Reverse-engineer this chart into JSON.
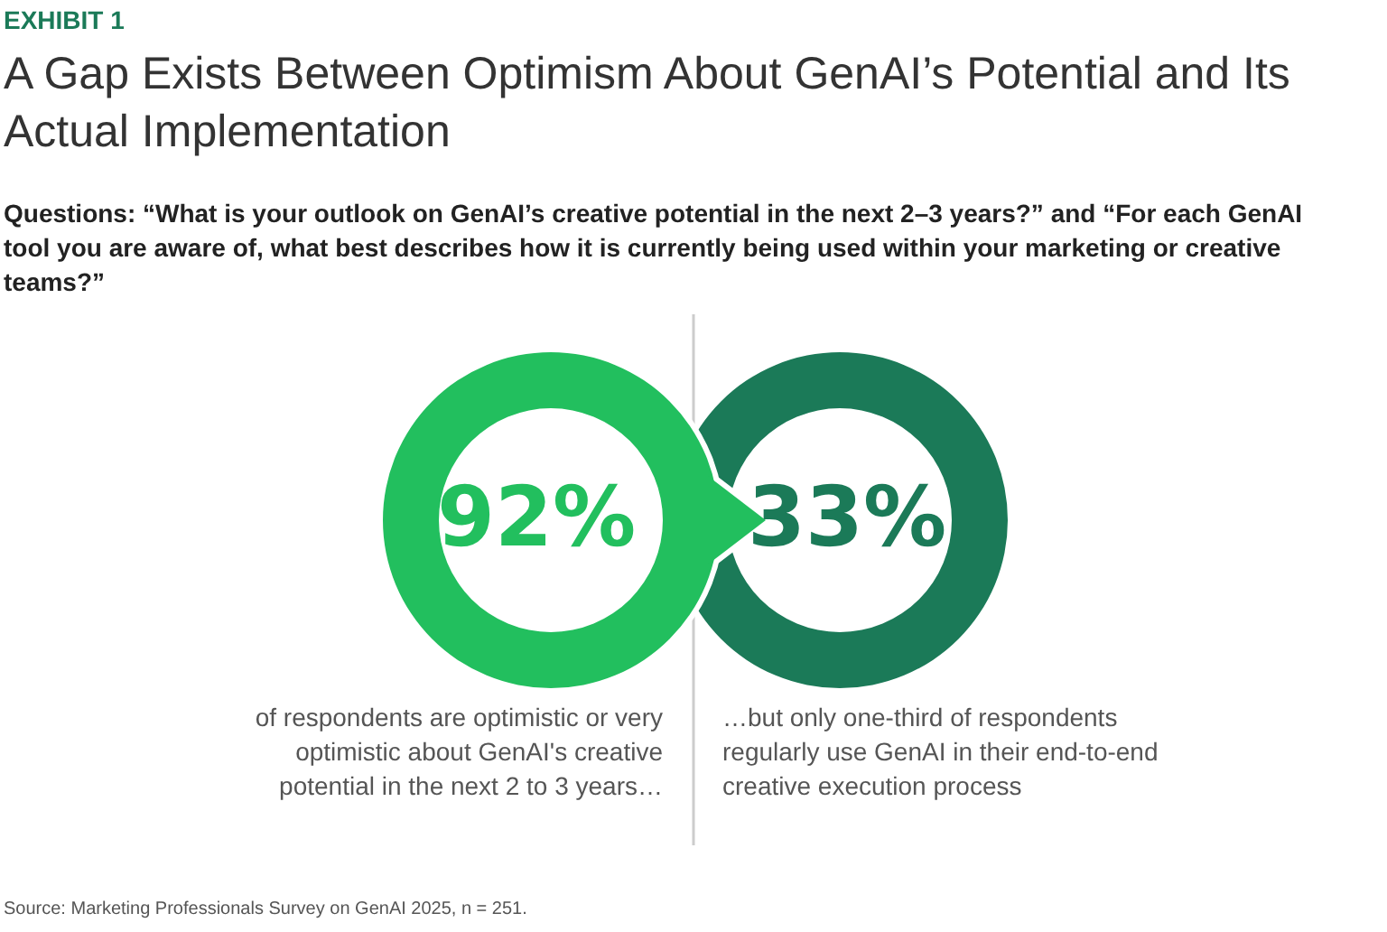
{
  "chart_data": {
    "type": "other",
    "title": "A Gap Exists Between Optimism About GenAI’s Potential and Its Actual Implementation",
    "subtitle": "Questions: “What is your outlook on GenAI’s creative potential in the next 2–3 years?” and “For each GenAI tool you are aware of, what best describes how it is currently being used within your marketing or creative teams?”",
    "categories": [
      "of respondents are optimistic or very optimistic about GenAI's creative potential in the next 2 to 3 years…",
      "…but only one-third of respondents regularly use GenAI in their end-to-end creative execution process"
    ],
    "values": [
      92,
      33
    ],
    "value_labels": [
      "92%",
      "33%"
    ],
    "colors": [
      "#22bf5e",
      "#1b7a58"
    ],
    "annotations": [
      "EXHIBIT 1",
      "Source: Marketing Professionals Survey on GenAI 2025, n = 251."
    ]
  }
}
